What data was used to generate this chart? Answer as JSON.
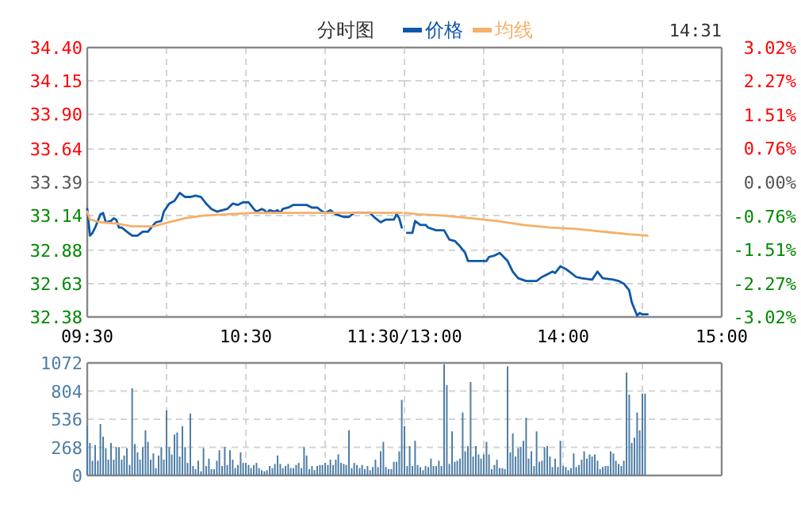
{
  "chart_data": [
    {
      "type": "line",
      "title": "分时图",
      "legend": "top",
      "grid": true,
      "xlim": [
        9.5,
        11.5
      ],
      "xticks": [
        {
          "value": 9.5,
          "label": "09:30"
        },
        {
          "value": 10,
          "label": null
        },
        {
          "value": 10.5,
          "label": "10:30"
        },
        {
          "value": 11,
          "label": null
        },
        {
          "value": 11.5,
          "label": "11:30/13:00"
        }
      ],
      "ylim": [
        32.38,
        34.4
      ],
      "yticks": [
        {
          "value": 32.38,
          "label": "32.38"
        },
        {
          "value": 32.63,
          "label": "32.63"
        },
        {
          "value": 32.88,
          "label": "32.88"
        },
        {
          "value": 33.14,
          "label": "33.14"
        },
        {
          "value": 33.39,
          "label": "33.39"
        },
        {
          "value": 33.64,
          "label": "33.64"
        },
        {
          "value": 33.9,
          "label": "33.90"
        },
        {
          "value": 34.15,
          "label": "34.15"
        },
        {
          "value": 34.4,
          "label": "34.40"
        }
      ],
      "series": [
        {
          "name": "价格",
          "color": "#0f58a8",
          "x": [
            9.5,
            9.517,
            9.533,
            9.55,
            9.583,
            9.6,
            9.617,
            9.65,
            9.667,
            9.683,
            9.7,
            9.717,
            9.75,
            9.783,
            9.817,
            9.85,
            9.883,
            9.917,
            9.933,
            9.967,
            9.983,
            10.017,
            10.05,
            10.083,
            10.117,
            10.15,
            10.183,
            10.217,
            10.25,
            10.283,
            10.317,
            10.35,
            10.383,
            10.417,
            10.45,
            10.483,
            10.517,
            10.55,
            10.567,
            10.6,
            10.617,
            10.633,
            10.65,
            10.683,
            10.7,
            10.717,
            10.733,
            10.767,
            10.8,
            10.833,
            10.883,
            10.917,
            10.95,
            10.983,
            11.0,
            11.033,
            11.067,
            11.117,
            11.15,
            11.183,
            11.217,
            11.25,
            11.283,
            11.317,
            11.35,
            11.383,
            11.433,
            11.45,
            11.467,
            11.483
          ],
          "values": [
            33.19,
            32.99,
            33.01,
            33.05,
            33.15,
            33.16,
            33.09,
            33.1,
            33.12,
            33.11,
            33.05,
            33.05,
            33.02,
            32.99,
            32.99,
            33.02,
            33.02,
            33.07,
            33.09,
            33.1,
            33.17,
            33.23,
            33.25,
            33.31,
            33.28,
            33.28,
            33.29,
            33.28,
            33.23,
            33.19,
            33.17,
            33.18,
            33.19,
            33.23,
            33.22,
            33.24,
            33.24,
            33.19,
            33.17,
            33.19,
            33.18,
            33.16,
            33.18,
            33.17,
            33.18,
            33.16,
            33.19,
            33.2,
            33.22,
            33.22,
            33.22,
            33.2,
            33.2,
            33.17,
            33.16,
            33.18,
            33.15,
            33.13,
            33.13,
            33.16,
            33.16,
            33.16,
            33.16,
            33.12,
            33.09,
            33.11,
            33.11,
            33.15,
            33.12,
            33.05
          ]
        },
        {
          "name": "均线",
          "color": "#f5b06a",
          "x": [
            9.5,
            9.517,
            9.583,
            9.683,
            9.783,
            9.917,
            9.983,
            10.117,
            10.233,
            10.383,
            10.55,
            10.783,
            11.25,
            11.483
          ],
          "values": [
            33.17,
            33.11,
            33.09,
            33.08,
            33.06,
            33.06,
            33.08,
            33.12,
            33.14,
            33.15,
            33.16,
            33.16,
            33.16,
            33.16
          ]
        }
      ]
    },
    {
      "type": "line",
      "grid": true,
      "tick_labels": "x",
      "annotations": [
        "14:31"
      ],
      "xlim": [
        13,
        15
      ],
      "xticks": [
        {
          "value": 13,
          "label": null
        },
        {
          "value": 13.5,
          "label": null
        },
        {
          "value": 14,
          "label": "14:00"
        },
        {
          "value": 14.5,
          "label": null
        },
        {
          "value": 15,
          "label": "15:00"
        }
      ],
      "ylim": [
        32.38,
        34.4
      ],
      "yticks": [
        {
          "value": 32.38,
          "label": null
        },
        {
          "value": 32.63,
          "label": null
        },
        {
          "value": 32.88,
          "label": null
        },
        {
          "value": 33.14,
          "label": null
        },
        {
          "value": 33.39,
          "label": null
        },
        {
          "value": 33.64,
          "label": null
        },
        {
          "value": 33.9,
          "label": null
        },
        {
          "value": 34.15,
          "label": null
        },
        {
          "value": 34.4,
          "label": null
        }
      ],
      "y2lim": [
        -3.02,
        3.02
      ],
      "y2ticks": [
        {
          "value": -3.02,
          "label": "-3.02%"
        },
        {
          "value": -2.27,
          "label": "-2.27%"
        },
        {
          "value": -1.51,
          "label": "-1.51%"
        },
        {
          "value": -0.76,
          "label": "-0.76%"
        },
        {
          "value": 0,
          "label": "0.00%"
        },
        {
          "value": 0.76,
          "label": "0.76%"
        },
        {
          "value": 1.51,
          "label": "1.51%"
        },
        {
          "value": 2.27,
          "label": "2.27%"
        },
        {
          "value": 3.02,
          "label": "3.02%"
        }
      ],
      "series": [
        {
          "color": "#0f58a8",
          "x": [
            13.017,
            13.05,
            13.067,
            13.1,
            13.133,
            13.15,
            13.2,
            13.25,
            13.283,
            13.317,
            13.35,
            13.383,
            13.4,
            13.433,
            13.517,
            13.533,
            13.567,
            13.6,
            13.617,
            13.65,
            13.683,
            13.717,
            13.767,
            13.833,
            13.867,
            13.9,
            13.933,
            13.95,
            13.983,
            14.017,
            14.05,
            14.083,
            14.117,
            14.183,
            14.217,
            14.25,
            14.317,
            14.35,
            14.383,
            14.417,
            14.433,
            14.467,
            14.483,
            14.5,
            14.533
          ],
          "values": [
            33.01,
            33.01,
            33.1,
            33.07,
            33.07,
            33.05,
            33.03,
            33.03,
            32.96,
            32.95,
            32.91,
            32.86,
            32.8,
            32.8,
            32.8,
            32.83,
            32.84,
            32.86,
            32.84,
            32.8,
            32.72,
            32.67,
            32.65,
            32.65,
            32.68,
            32.7,
            32.72,
            32.71,
            32.76,
            32.74,
            32.71,
            32.68,
            32.67,
            32.66,
            32.72,
            32.67,
            32.66,
            32.65,
            32.63,
            32.58,
            32.49,
            32.39,
            32.41,
            32.4,
            32.4
          ]
        },
        {
          "color": "#f5b06a",
          "x": [
            13.0,
            13.083,
            13.25,
            13.417,
            13.583,
            13.75,
            13.917,
            14.083,
            14.25,
            14.417,
            14.533
          ],
          "values": [
            33.16,
            33.15,
            33.14,
            33.12,
            33.1,
            33.07,
            33.05,
            33.04,
            33.02,
            33.0,
            32.99
          ]
        }
      ]
    },
    {
      "type": "bar",
      "grid": true,
      "tick_labels": "y",
      "xlim": [
        9.5,
        11.5
      ],
      "xticks": [
        {
          "value": 9.5,
          "label": null
        },
        {
          "value": 10,
          "label": null
        },
        {
          "value": 10.5,
          "label": null
        },
        {
          "value": 11,
          "label": null
        },
        {
          "value": 11.5,
          "label": null
        }
      ],
      "ylim": [
        0,
        1072
      ],
      "yticks": [
        0,
        268,
        536,
        804,
        1072
      ],
      "series": [
        {
          "color": "#4f7ea6",
          "x": [
            9.5,
            9.517,
            9.533,
            9.55,
            9.567,
            9.583,
            9.6,
            9.617,
            9.633,
            9.65,
            9.667,
            9.683,
            9.7,
            9.717,
            9.733,
            9.75,
            9.767,
            9.783,
            9.8,
            9.817,
            9.833,
            9.85,
            9.867,
            9.883,
            9.9,
            9.917,
            9.933,
            9.95,
            9.967,
            9.983,
            10.0,
            10.017,
            10.033,
            10.05,
            10.067,
            10.083,
            10.1,
            10.117,
            10.133,
            10.15,
            10.167,
            10.183,
            10.2,
            10.217,
            10.233,
            10.25,
            10.267,
            10.283,
            10.3,
            10.317,
            10.333,
            10.35,
            10.367,
            10.383,
            10.4,
            10.417,
            10.433,
            10.45,
            10.467,
            10.483,
            10.5,
            10.517,
            10.533,
            10.55,
            10.567,
            10.583,
            10.6,
            10.617,
            10.633,
            10.65,
            10.667,
            10.683,
            10.7,
            10.717,
            10.733,
            10.75,
            10.767,
            10.783,
            10.8,
            10.817,
            10.833,
            10.85,
            10.867,
            10.883,
            10.9,
            10.917,
            10.933,
            10.95,
            10.967,
            10.983,
            11.0,
            11.017,
            11.033,
            11.05,
            11.067,
            11.083,
            11.1,
            11.117,
            11.133,
            11.15,
            11.167,
            11.183,
            11.2,
            11.217,
            11.233,
            11.25,
            11.267,
            11.283,
            11.3,
            11.317,
            11.333,
            11.35,
            11.367,
            11.383,
            11.4,
            11.417,
            11.433,
            11.45,
            11.467,
            11.483
          ],
          "values": [
            470,
            310,
            140,
            290,
            140,
            490,
            370,
            260,
            150,
            310,
            150,
            270,
            270,
            150,
            190,
            260,
            100,
            830,
            300,
            220,
            150,
            270,
            430,
            320,
            150,
            210,
            70,
            190,
            270,
            150,
            620,
            270,
            200,
            390,
            410,
            180,
            470,
            270,
            120,
            590,
            90,
            60,
            140,
            40,
            260,
            90,
            160,
            60,
            60,
            140,
            240,
            90,
            270,
            100,
            240,
            150,
            70,
            100,
            220,
            120,
            120,
            100,
            70,
            100,
            120,
            70,
            50,
            40,
            50,
            90,
            70,
            110,
            190,
            110,
            70,
            90,
            110,
            70,
            70,
            100,
            120,
            70,
            270,
            190,
            60,
            90,
            50,
            90,
            100,
            100,
            120,
            100,
            150,
            100,
            150,
            200,
            120,
            110,
            100,
            430,
            70,
            120,
            100,
            70,
            100,
            60,
            90,
            50,
            80,
            150,
            80,
            230,
            320,
            80,
            60,
            60,
            130,
            130,
            230,
            720
          ]
        }
      ]
    },
    {
      "type": "bar",
      "grid": true,
      "tick_labels": false,
      "xlim": [
        13,
        15
      ],
      "xticks": [
        {
          "value": 13,
          "label": null
        },
        {
          "value": 13.5,
          "label": null
        },
        {
          "value": 14,
          "label": null
        },
        {
          "value": 14.5,
          "label": null
        },
        {
          "value": 15,
          "label": null
        }
      ],
      "ylim": [
        0,
        1072
      ],
      "yticks": [
        {
          "value": 0,
          "label": null
        },
        {
          "value": 268,
          "label": null
        },
        {
          "value": 536,
          "label": null
        },
        {
          "value": 804,
          "label": null
        },
        {
          "value": 1072,
          "label": null
        }
      ],
      "series": [
        {
          "color": "#4f7ea6",
          "x": [
            13.0,
            13.017,
            13.033,
            13.05,
            13.067,
            13.083,
            13.1,
            13.117,
            13.133,
            13.15,
            13.167,
            13.183,
            13.2,
            13.217,
            13.233,
            13.25,
            13.267,
            13.283,
            13.3,
            13.317,
            13.333,
            13.35,
            13.367,
            13.383,
            13.4,
            13.417,
            13.433,
            13.45,
            13.467,
            13.483,
            13.5,
            13.517,
            13.533,
            13.55,
            13.567,
            13.583,
            13.6,
            13.617,
            13.633,
            13.65,
            13.667,
            13.683,
            13.7,
            13.717,
            13.733,
            13.75,
            13.767,
            13.783,
            13.8,
            13.817,
            13.833,
            13.85,
            13.867,
            13.883,
            13.9,
            13.917,
            13.933,
            13.95,
            13.967,
            13.983,
            14.0,
            14.017,
            14.033,
            14.05,
            14.067,
            14.083,
            14.1,
            14.117,
            14.133,
            14.15,
            14.167,
            14.183,
            14.2,
            14.217,
            14.233,
            14.25,
            14.267,
            14.283,
            14.3,
            14.317,
            14.333,
            14.35,
            14.367,
            14.383,
            14.4,
            14.417,
            14.433,
            14.45,
            14.467,
            14.483,
            14.5,
            14.517
          ],
          "values": [
            470,
            90,
            280,
            90,
            330,
            100,
            80,
            50,
            90,
            80,
            160,
            90,
            90,
            140,
            90,
            1060,
            860,
            110,
            420,
            130,
            140,
            160,
            600,
            230,
            280,
            890,
            180,
            280,
            200,
            160,
            200,
            320,
            200,
            60,
            100,
            150,
            70,
            70,
            60,
            1040,
            220,
            400,
            180,
            260,
            270,
            330,
            550,
            160,
            230,
            90,
            420,
            130,
            140,
            270,
            280,
            180,
            80,
            160,
            80,
            330,
            90,
            80,
            50,
            70,
            210,
            80,
            100,
            150,
            230,
            160,
            200,
            180,
            200,
            140,
            60,
            80,
            90,
            90,
            230,
            210,
            140,
            110,
            90,
            140,
            980,
            770,
            310,
            360,
            600,
            430,
            780,
            780
          ]
        }
      ]
    }
  ]
}
